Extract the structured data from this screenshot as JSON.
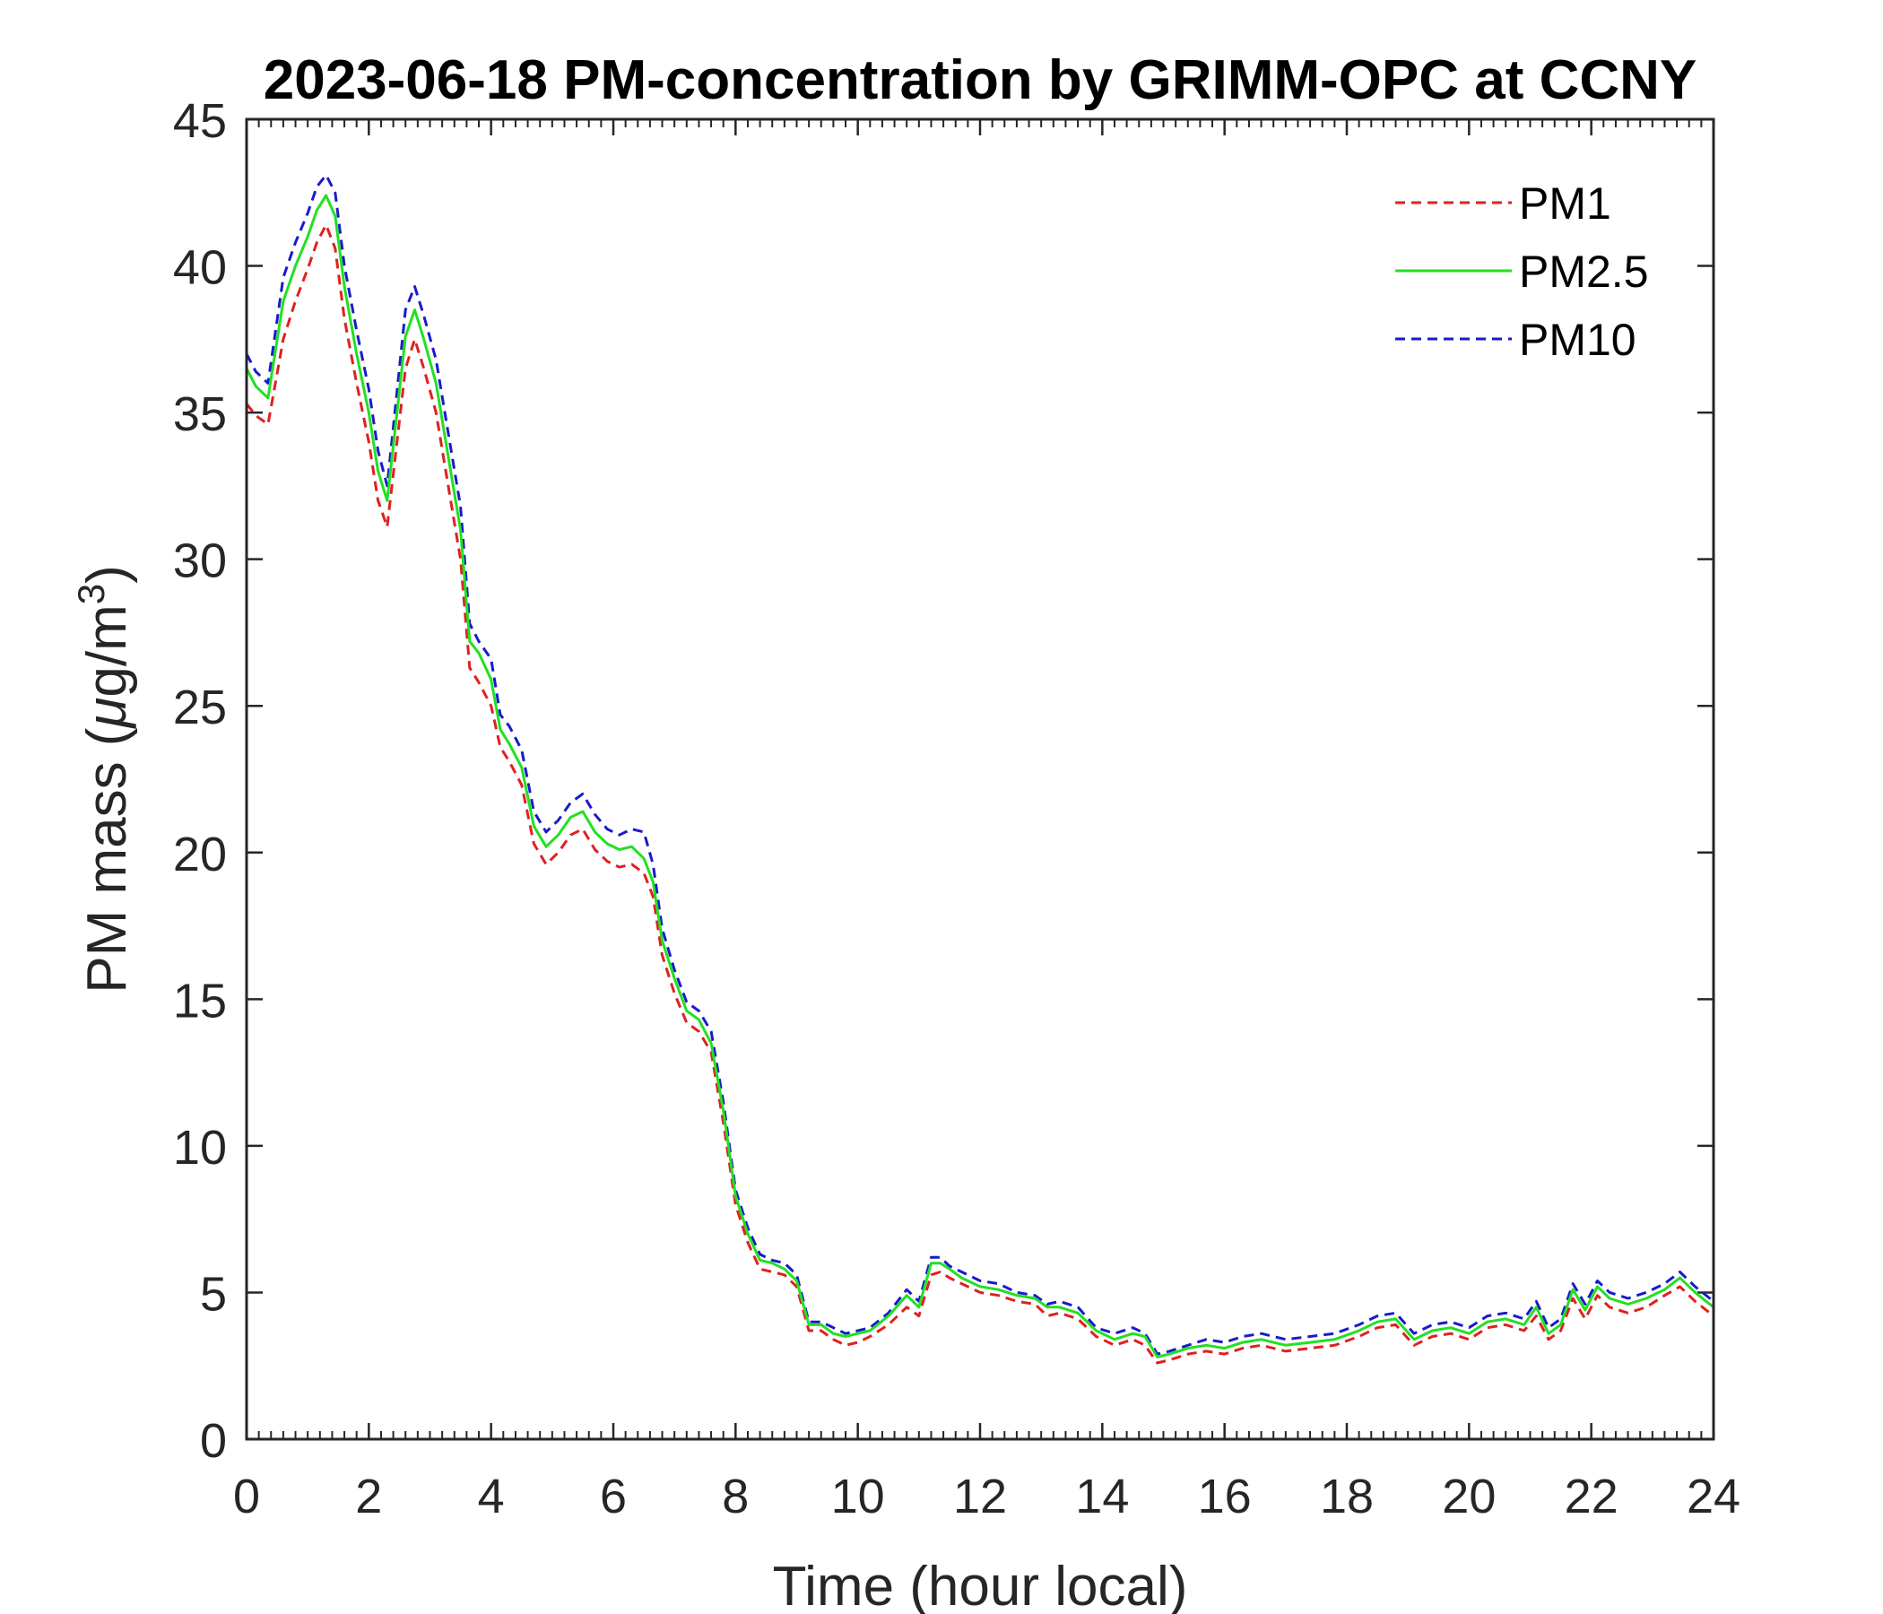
{
  "chart_data": {
    "type": "line",
    "title": "2023-06-18 PM-concentration by GRIMM-OPC at CCNY",
    "xlabel": "Time (hour local)",
    "ylabel_main": "PM mass (",
    "ylabel_mu": "μ",
    "ylabel_unit": "g/m",
    "ylabel_sup": "3",
    "ylabel_close": ")",
    "xlim": [
      0,
      24
    ],
    "ylim": [
      0,
      45
    ],
    "xticks": [
      0,
      2,
      4,
      6,
      8,
      10,
      12,
      14,
      16,
      18,
      20,
      22,
      24
    ],
    "yticks": [
      0,
      5,
      10,
      15,
      20,
      25,
      30,
      35,
      40,
      45
    ],
    "legend_position": "top-right",
    "series": [
      {
        "name": "PM1",
        "color": "#e02020",
        "dash": "dashed",
        "x": [
          0,
          0.15,
          0.35,
          0.6,
          0.8,
          1.0,
          1.15,
          1.3,
          1.45,
          1.6,
          1.8,
          2.0,
          2.15,
          2.3,
          2.45,
          2.6,
          2.75,
          2.9,
          3.1,
          3.3,
          3.5,
          3.65,
          3.8,
          4.0,
          4.15,
          4.3,
          4.5,
          4.7,
          4.9,
          5.1,
          5.3,
          5.5,
          5.7,
          5.9,
          6.1,
          6.3,
          6.5,
          6.65,
          6.8,
          7.0,
          7.2,
          7.4,
          7.6,
          7.8,
          8.0,
          8.2,
          8.4,
          8.6,
          8.8,
          9.0,
          9.2,
          9.4,
          9.6,
          9.8,
          10.0,
          10.2,
          10.5,
          10.8,
          11.0,
          11.2,
          11.35,
          11.5,
          11.7,
          12.0,
          12.3,
          12.6,
          12.9,
          13.1,
          13.3,
          13.6,
          13.9,
          14.2,
          14.5,
          14.7,
          14.9,
          15.1,
          15.4,
          15.7,
          16.0,
          16.3,
          16.6,
          17.0,
          17.4,
          17.8,
          18.2,
          18.5,
          18.8,
          19.1,
          19.4,
          19.7,
          20.0,
          20.3,
          20.6,
          20.9,
          21.1,
          21.3,
          21.5,
          21.7,
          21.9,
          22.1,
          22.3,
          22.6,
          22.9,
          23.2,
          23.45,
          23.7,
          24.0
        ],
        "y": [
          35.3,
          34.9,
          34.6,
          37.5,
          38.8,
          39.9,
          40.8,
          41.4,
          40.6,
          38.2,
          36.0,
          34.0,
          32.0,
          31.1,
          33.8,
          36.5,
          37.5,
          36.5,
          35.0,
          32.5,
          30.0,
          26.3,
          25.8,
          25.0,
          23.6,
          23.1,
          22.3,
          20.3,
          19.6,
          20.0,
          20.6,
          20.8,
          20.1,
          19.7,
          19.5,
          19.6,
          19.3,
          18.5,
          16.5,
          15.2,
          14.2,
          13.9,
          13.2,
          10.8,
          8.0,
          6.7,
          5.8,
          5.7,
          5.6,
          5.2,
          3.7,
          3.7,
          3.4,
          3.2,
          3.3,
          3.5,
          3.9,
          4.5,
          4.2,
          5.6,
          5.7,
          5.5,
          5.3,
          5.0,
          4.9,
          4.7,
          4.6,
          4.2,
          4.3,
          4.1,
          3.5,
          3.2,
          3.4,
          3.2,
          2.6,
          2.7,
          2.9,
          3.0,
          2.9,
          3.1,
          3.2,
          3.0,
          3.1,
          3.2,
          3.5,
          3.8,
          3.9,
          3.2,
          3.5,
          3.6,
          3.4,
          3.8,
          3.9,
          3.7,
          4.2,
          3.4,
          3.7,
          4.8,
          4.1,
          4.9,
          4.5,
          4.3,
          4.5,
          4.9,
          5.2,
          4.7,
          4.2
        ]
      },
      {
        "name": "PM2.5",
        "color": "#22e022",
        "dash": "solid",
        "x": [
          0,
          0.15,
          0.35,
          0.6,
          0.8,
          1.0,
          1.15,
          1.3,
          1.45,
          1.6,
          1.8,
          2.0,
          2.15,
          2.3,
          2.45,
          2.6,
          2.75,
          2.9,
          3.1,
          3.3,
          3.5,
          3.65,
          3.8,
          4.0,
          4.15,
          4.3,
          4.5,
          4.7,
          4.9,
          5.1,
          5.3,
          5.5,
          5.7,
          5.9,
          6.1,
          6.3,
          6.5,
          6.65,
          6.8,
          7.0,
          7.2,
          7.4,
          7.6,
          7.8,
          8.0,
          8.2,
          8.4,
          8.6,
          8.8,
          9.0,
          9.2,
          9.4,
          9.6,
          9.8,
          10.0,
          10.2,
          10.5,
          10.8,
          11.0,
          11.2,
          11.35,
          11.5,
          11.7,
          12.0,
          12.3,
          12.6,
          12.9,
          13.1,
          13.3,
          13.6,
          13.9,
          14.2,
          14.5,
          14.7,
          14.9,
          15.1,
          15.4,
          15.7,
          16.0,
          16.3,
          16.6,
          17.0,
          17.4,
          17.8,
          18.2,
          18.5,
          18.8,
          19.1,
          19.4,
          19.7,
          20.0,
          20.3,
          20.6,
          20.9,
          21.1,
          21.3,
          21.5,
          21.7,
          21.9,
          22.1,
          22.3,
          22.6,
          22.9,
          23.2,
          23.45,
          23.7,
          24.0
        ],
        "y": [
          36.5,
          35.9,
          35.5,
          38.8,
          40.0,
          41.0,
          41.9,
          42.4,
          41.7,
          39.3,
          37.0,
          35.0,
          33.0,
          32.0,
          34.8,
          37.6,
          38.5,
          37.5,
          36.0,
          33.5,
          31.0,
          27.2,
          26.8,
          25.9,
          24.2,
          23.7,
          22.9,
          20.9,
          20.2,
          20.6,
          21.2,
          21.4,
          20.7,
          20.3,
          20.1,
          20.2,
          19.8,
          19.0,
          17.0,
          15.7,
          14.6,
          14.3,
          13.5,
          11.2,
          8.3,
          7.0,
          6.1,
          6.0,
          5.8,
          5.4,
          3.9,
          3.9,
          3.6,
          3.5,
          3.6,
          3.7,
          4.2,
          4.9,
          4.5,
          6.0,
          6.0,
          5.8,
          5.5,
          5.2,
          5.1,
          4.9,
          4.8,
          4.5,
          4.5,
          4.3,
          3.7,
          3.4,
          3.6,
          3.5,
          2.8,
          2.9,
          3.1,
          3.2,
          3.1,
          3.3,
          3.4,
          3.2,
          3.3,
          3.4,
          3.7,
          4.0,
          4.1,
          3.4,
          3.7,
          3.8,
          3.6,
          4.0,
          4.1,
          3.9,
          4.5,
          3.6,
          3.9,
          5.1,
          4.4,
          5.2,
          4.8,
          4.6,
          4.8,
          5.1,
          5.5,
          5.0,
          4.5
        ]
      },
      {
        "name": "PM10",
        "color": "#1a1acc",
        "dash": "dashed",
        "x": [
          0,
          0.15,
          0.35,
          0.6,
          0.8,
          1.0,
          1.15,
          1.3,
          1.45,
          1.6,
          1.8,
          2.0,
          2.15,
          2.3,
          2.45,
          2.6,
          2.75,
          2.9,
          3.1,
          3.3,
          3.5,
          3.65,
          3.8,
          4.0,
          4.15,
          4.3,
          4.5,
          4.7,
          4.9,
          5.1,
          5.3,
          5.5,
          5.7,
          5.9,
          6.1,
          6.3,
          6.5,
          6.65,
          6.8,
          7.0,
          7.2,
          7.4,
          7.6,
          7.8,
          8.0,
          8.2,
          8.4,
          8.6,
          8.8,
          9.0,
          9.2,
          9.4,
          9.6,
          9.8,
          10.0,
          10.2,
          10.5,
          10.8,
          11.0,
          11.2,
          11.35,
          11.5,
          11.7,
          12.0,
          12.3,
          12.6,
          12.9,
          13.1,
          13.3,
          13.6,
          13.9,
          14.2,
          14.5,
          14.7,
          14.9,
          15.1,
          15.4,
          15.7,
          16.0,
          16.3,
          16.6,
          17.0,
          17.4,
          17.8,
          18.2,
          18.5,
          18.8,
          19.1,
          19.4,
          19.7,
          20.0,
          20.3,
          20.6,
          20.9,
          21.1,
          21.3,
          21.5,
          21.7,
          21.9,
          22.1,
          22.3,
          22.6,
          22.9,
          23.2,
          23.45,
          23.7,
          24.0
        ],
        "y": [
          37.0,
          36.4,
          36.0,
          39.6,
          40.8,
          41.8,
          42.7,
          43.1,
          42.5,
          40.0,
          37.8,
          35.8,
          33.7,
          32.5,
          35.5,
          38.5,
          39.3,
          38.3,
          36.8,
          34.3,
          31.8,
          27.8,
          27.2,
          26.6,
          24.7,
          24.3,
          23.5,
          21.4,
          20.7,
          21.1,
          21.7,
          22.0,
          21.3,
          20.8,
          20.6,
          20.8,
          20.7,
          19.6,
          17.4,
          16.0,
          14.9,
          14.6,
          13.9,
          11.5,
          8.5,
          7.2,
          6.3,
          6.1,
          6.0,
          5.6,
          4.0,
          4.0,
          3.8,
          3.6,
          3.7,
          3.8,
          4.3,
          5.1,
          4.7,
          6.2,
          6.2,
          5.9,
          5.7,
          5.4,
          5.3,
          5.0,
          4.9,
          4.6,
          4.7,
          4.5,
          3.8,
          3.6,
          3.8,
          3.6,
          2.9,
          3.0,
          3.2,
          3.4,
          3.3,
          3.5,
          3.6,
          3.4,
          3.5,
          3.6,
          3.9,
          4.2,
          4.3,
          3.6,
          3.9,
          4.0,
          3.8,
          4.2,
          4.3,
          4.1,
          4.7,
          3.8,
          4.1,
          5.3,
          4.6,
          5.4,
          5.0,
          4.8,
          5.0,
          5.3,
          5.7,
          5.2,
          4.7
        ]
      }
    ]
  }
}
